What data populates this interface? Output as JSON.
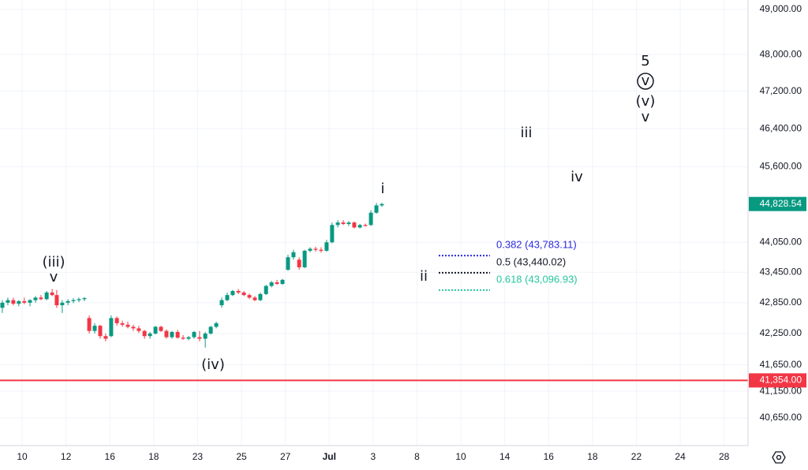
{
  "chart_data": {
    "type": "candlestick",
    "log_scale": true,
    "grid": true,
    "up_color": "#089981",
    "down_color": "#f23645",
    "x": [
      -0.9,
      -0.65,
      -0.4,
      -0.15,
      0.1,
      0.36,
      0.61,
      0.86,
      1.12,
      1.37,
      1.58,
      1.83,
      2.09,
      2.34,
      2.59,
      2.84,
      3.06,
      3.31,
      3.56,
      3.81,
      4.06,
      4.32,
      4.57,
      4.82,
      5.07,
      5.32,
      5.58,
      5.83,
      6.08,
      6.33,
      6.58,
      6.83,
      7.09,
      7.34,
      7.59,
      7.84,
      8.09,
      8.35,
      8.6,
      8.85,
      9.1,
      9.35,
      9.6,
      9.86,
      10.11,
      10.36,
      10.61,
      10.86,
      11.12,
      11.37,
      11.62,
      11.87,
      12.12,
      12.37,
      12.63,
      12.88,
      13.13,
      13.38,
      13.63,
      13.88,
      14.13,
      14.39,
      14.64,
      14.89,
      15.14,
      15.4,
      15.65,
      15.9,
      16.15,
      16.4
    ],
    "open": [
      42750,
      42850,
      42900,
      42830,
      42880,
      42850,
      42900,
      42950,
      42920,
      43050,
      43000,
      42800,
      42850,
      42880,
      42900,
      42920,
      42550,
      42300,
      42400,
      42200,
      42200,
      42550,
      42450,
      42420,
      42380,
      42350,
      42300,
      42200,
      42250,
      42380,
      42300,
      42180,
      42280,
      42170,
      42150,
      42180,
      42180,
      42150,
      42250,
      42380,
      42800,
      42900,
      43000,
      43080,
      43050,
      43000,
      42950,
      42900,
      43020,
      43180,
      43250,
      43220,
      43500,
      43750,
      43700,
      43550,
      43880,
      43920,
      43900,
      43880,
      44050,
      44400,
      44450,
      44420,
      44450,
      44350,
      44400,
      44400,
      44650,
      44800
    ],
    "high": [
      42900,
      42950,
      42950,
      42900,
      42950,
      42920,
      42980,
      43000,
      43080,
      43120,
      43100,
      42900,
      42920,
      42940,
      42950,
      42960,
      42600,
      42450,
      42420,
      42250,
      42600,
      42580,
      42500,
      42480,
      42420,
      42400,
      42320,
      42280,
      42400,
      42400,
      42330,
      42300,
      42320,
      42220,
      42200,
      42300,
      42300,
      42280,
      42400,
      42480,
      42950,
      43050,
      43100,
      43120,
      43080,
      43030,
      42980,
      43050,
      43200,
      43280,
      43300,
      43320,
      43800,
      43900,
      43750,
      43900,
      43950,
      43960,
      43950,
      44100,
      44450,
      44500,
      44500,
      44480,
      44470,
      44420,
      44430,
      44700,
      44850,
      44850
    ],
    "low": [
      42650,
      42800,
      42800,
      42780,
      42820,
      42780,
      42850,
      42900,
      42900,
      42980,
      42750,
      42650,
      42800,
      42840,
      42860,
      42880,
      42250,
      42250,
      42150,
      42100,
      42180,
      42400,
      42380,
      42350,
      42300,
      42260,
      42150,
      42150,
      42230,
      42280,
      42150,
      42150,
      42150,
      42130,
      42120,
      42150,
      42100,
      41980,
      42230,
      42350,
      42750,
      42880,
      42980,
      43020,
      42980,
      42920,
      42880,
      42880,
      43000,
      43150,
      43200,
      43200,
      43480,
      43700,
      43500,
      43530,
      43850,
      43860,
      43840,
      43860,
      44030,
      44350,
      44400,
      44380,
      44330,
      44330,
      44370,
      44380,
      44630,
      44770
    ],
    "close": [
      42850,
      42900,
      42830,
      42880,
      42850,
      42900,
      42950,
      42920,
      43050,
      43000,
      42800,
      42850,
      42880,
      42900,
      42920,
      42940,
      42300,
      42400,
      42200,
      42150,
      42550,
      42450,
      42420,
      42380,
      42350,
      42300,
      42200,
      42250,
      42380,
      42300,
      42180,
      42280,
      42170,
      42150,
      42180,
      42280,
      42150,
      42250,
      42380,
      42450,
      42900,
      43000,
      43080,
      43050,
      43000,
      42950,
      42900,
      43020,
      43180,
      43250,
      43220,
      43300,
      43750,
      43850,
      43550,
      43880,
      43920,
      43900,
      43880,
      44050,
      44400,
      44450,
      44420,
      44450,
      44350,
      44400,
      44380,
      44650,
      44800,
      44828.54
    ],
    "xlim": [
      -1.007,
      33.09
    ],
    "xticks": [
      {
        "value": 0,
        "label": "10"
      },
      {
        "value": 2,
        "label": "12"
      },
      {
        "value": 4,
        "label": "16"
      },
      {
        "value": 6,
        "label": "18"
      },
      {
        "value": 8,
        "label": "23"
      },
      {
        "value": 10,
        "label": "25"
      },
      {
        "value": 12,
        "label": "27"
      },
      {
        "value": 14,
        "label": "Jul"
      },
      {
        "value": 16,
        "label": "3"
      },
      {
        "value": 18,
        "label": "8"
      },
      {
        "value": 20,
        "label": "10"
      },
      {
        "value": 22,
        "label": "14"
      },
      {
        "value": 24,
        "label": "16"
      },
      {
        "value": 26,
        "label": "18"
      },
      {
        "value": 28,
        "label": "22"
      },
      {
        "value": 30,
        "label": "24"
      },
      {
        "value": 32,
        "label": "28"
      }
    ],
    "ylim": [
      40140,
      49212
    ],
    "yticks": [
      {
        "value": 49000,
        "label": "49,000.00"
      },
      {
        "value": 48000,
        "label": "48,000.00"
      },
      {
        "value": 47200,
        "label": "47,200.00"
      },
      {
        "value": 46400,
        "label": "46,400.00"
      },
      {
        "value": 45600,
        "label": "45,600.00"
      },
      {
        "value": 44050,
        "label": "44,050.00"
      },
      {
        "value": 43450,
        "label": "43,450.00"
      },
      {
        "value": 42850,
        "label": "42,850.00"
      },
      {
        "value": 42250,
        "label": "42,250.00"
      },
      {
        "value": 41650,
        "label": "41,650.00"
      },
      {
        "value": 41150,
        "label": "41,150.00"
      },
      {
        "value": 40650,
        "label": "40,650.00"
      }
    ],
    "last_price": {
      "value": 44828.54,
      "label": "44,828.54",
      "color": "#089981"
    },
    "hline": {
      "value": 41354,
      "label": "41,354.00",
      "color": "#f23645"
    },
    "fib_levels": [
      {
        "price": 43783.11,
        "label": "0.382 (43,783.11)",
        "color": "#2a2ae0"
      },
      {
        "price": 43440.02,
        "label": "0.5 (43,440.02)",
        "color": "#131722"
      },
      {
        "price": 43096.93,
        "label": "0.618 (43,096.93)",
        "color": "#26c6a0"
      }
    ],
    "annotations": [
      "(iii)",
      "v",
      "(iv)",
      "i",
      "ii",
      "iii",
      "iv",
      "5",
      "v",
      "(v)",
      "v"
    ]
  }
}
